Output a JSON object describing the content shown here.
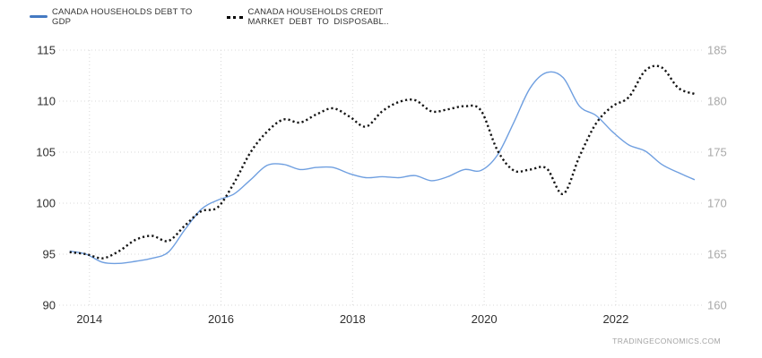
{
  "legend": {
    "items": [
      {
        "label_line1": "CANADA HOUSEHOLDS DEBT TO",
        "label_line2": "GDP",
        "swatch": "solid-blue-line"
      },
      {
        "label_line1": "CANADA HOUSEHOLDS CREDIT",
        "label_line2": "MARKET DEBT TO DISPOSABL..",
        "swatch": "black-dotted-line"
      }
    ]
  },
  "watermark": "TRADINGECONOMICS.COM",
  "colors": {
    "grid": "#d8d8d8",
    "left_axis_labels": "#2f2f2f",
    "right_axis_labels": "#a8a8a8",
    "x_axis_labels": "#2f2f2f",
    "blue_line": "#6f9fe0",
    "blue_swatch": "#4479c2",
    "dotted_line": "#141414",
    "legend_text": "#333333",
    "watermark": "#a3a3a3"
  },
  "chart_data": {
    "type": "line",
    "title": "",
    "xlabel": "",
    "ylabel_left": "",
    "ylabel_right": "",
    "grid": "dotted",
    "legend_position": "top-left",
    "x_axis": {
      "min": 2013.54,
      "max": 2023.31,
      "ticks": [
        2014,
        2016,
        2018,
        2020,
        2022
      ],
      "labels": [
        "2014",
        "2016",
        "2018",
        "2020",
        "2022"
      ]
    },
    "left_axis": {
      "min": 90,
      "max": 115,
      "ticks": [
        90,
        95,
        100,
        105,
        110,
        115
      ],
      "labels": [
        "90",
        "95",
        "100",
        "105",
        "110",
        "115"
      ]
    },
    "right_axis": {
      "min": 160,
      "max": 185,
      "ticks": [
        160,
        165,
        170,
        175,
        180,
        185
      ],
      "labels": [
        "160",
        "165",
        "170",
        "175",
        "180",
        "185"
      ]
    },
    "series": [
      {
        "name": "CANADA HOUSEHOLDS DEBT TO GDP",
        "axis": "left",
        "style": "solid",
        "color": "#6f9fe0",
        "x_start": 2013.7,
        "x_step": 0.25,
        "values": [
          95.3,
          95.0,
          94.2,
          94.1,
          94.3,
          94.6,
          95.2,
          97.4,
          99.4,
          100.3,
          100.9,
          102.3,
          103.7,
          103.8,
          103.3,
          103.5,
          103.5,
          102.9,
          102.5,
          102.6,
          102.5,
          102.7,
          102.2,
          102.6,
          103.3,
          103.2,
          104.7,
          107.9,
          111.3,
          112.8,
          112.3,
          109.5,
          108.6,
          107.0,
          105.7,
          105.1,
          103.8,
          103.0,
          102.3
        ]
      },
      {
        "name": "CANADA HOUSEHOLDS CREDIT MARKET DEBT TO DISPOSABL..",
        "axis": "right",
        "style": "dotted",
        "color": "#141414",
        "x_start": 2013.7,
        "x_step": 0.25,
        "values": [
          165.2,
          165.0,
          164.6,
          165.3,
          166.4,
          166.8,
          166.3,
          167.8,
          169.2,
          169.6,
          172.0,
          175.0,
          177.0,
          178.2,
          177.9,
          178.7,
          179.3,
          178.5,
          177.5,
          179.0,
          179.9,
          180.1,
          179.0,
          179.2,
          179.5,
          179.1,
          175.2,
          173.2,
          173.3,
          173.4,
          170.9,
          174.6,
          177.8,
          179.5,
          180.4,
          183.0,
          183.3,
          181.3,
          180.7
        ]
      }
    ]
  }
}
